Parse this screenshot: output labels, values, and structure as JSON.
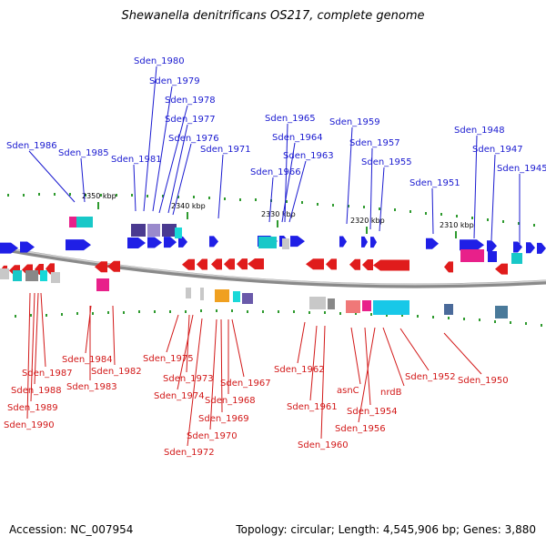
{
  "title": "Shewanella denitrificans OS217, complete genome",
  "footer": {
    "accession": "Accession: NC_007954",
    "topology": "Topology: circular; Length: 4,545,906 bp; Genes: 3,880"
  },
  "colors": {
    "forward_gene": "#1f1fe6",
    "reverse_gene": "#e01c1c",
    "backbone": "#8a8a8a",
    "tick_dot": "#2e9a2e",
    "label_blue": "#1a1ad0",
    "label_red": "#d21818"
  },
  "scale_ticks": [
    "2350 kbp",
    "2340 kbp",
    "2330 kbp",
    "2320 kbp",
    "2310 kbp"
  ],
  "forward_labels": [
    "Sden_1980",
    "Sden_1979",
    "Sden_1978",
    "Sden_1977",
    "Sden_1976",
    "Sden_1986",
    "Sden_1985",
    "Sden_1981",
    "Sden_1971",
    "Sden_1965",
    "Sden_1964",
    "Sden_1963",
    "Sden_1966",
    "Sden_1959",
    "Sden_1957",
    "Sden_1955",
    "Sden_1951",
    "Sden_1948",
    "Sden_1947",
    "Sden_1945"
  ],
  "reverse_labels": [
    "Sden_1984",
    "Sden_1982",
    "Sden_1987",
    "Sden_1983",
    "Sden_1988",
    "Sden_1989",
    "Sden_1990",
    "Sden_1975",
    "Sden_1973",
    "Sden_1974",
    "Sden_1967",
    "Sden_1968",
    "Sden_1969",
    "Sden_1970",
    "Sden_1972",
    "Sden_1962",
    "Sden_1961",
    "Sden_1960",
    "asnC",
    "Sden_1954",
    "Sden_1956",
    "nrdB",
    "Sden_1952",
    "Sden_1950"
  ]
}
